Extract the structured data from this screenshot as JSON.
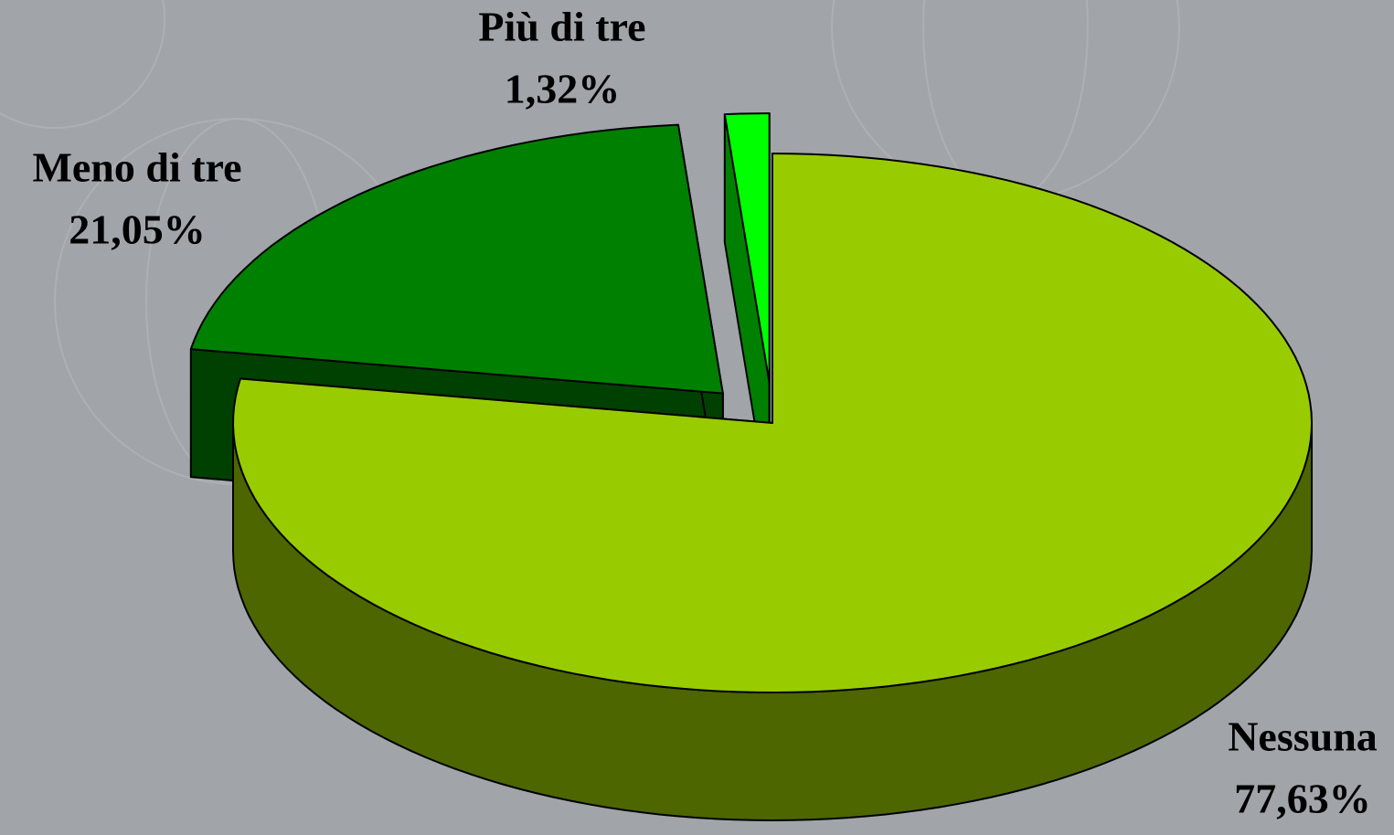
{
  "chart_data": {
    "type": "pie",
    "categories": [
      "Nessuna",
      "Meno di tre",
      "Più di tre"
    ],
    "values": [
      77.63,
      21.05,
      1.32
    ],
    "value_labels": [
      "77,63%",
      "21,05%",
      "1,32%"
    ],
    "colors": [
      "#99cc00",
      "#008000",
      "#00ff00"
    ]
  }
}
